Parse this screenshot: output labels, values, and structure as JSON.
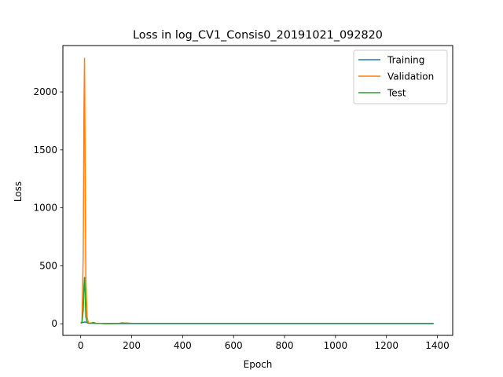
{
  "chart_data": {
    "type": "line",
    "title": "Loss in log_CV1_Consis0_20191021_092820",
    "xlabel": "Epoch",
    "ylabel": "Loss",
    "xlim": [
      -70,
      1460
    ],
    "ylim": [
      -100,
      2400
    ],
    "xticks": [
      0,
      200,
      400,
      600,
      800,
      1000,
      1200,
      1400
    ],
    "yticks": [
      0,
      500,
      1000,
      1500,
      2000
    ],
    "grid": false,
    "legend_position": "top-right",
    "series": [
      {
        "name": "Training",
        "color": "#1f77b4",
        "x": [
          0,
          5,
          10,
          15,
          20,
          25,
          30,
          40,
          50,
          60,
          80,
          100,
          150,
          200,
          300,
          400,
          600,
          800,
          1000,
          1200,
          1385
        ],
        "y": [
          8,
          10,
          12,
          15,
          14,
          10,
          6,
          5,
          4,
          3,
          3,
          2,
          2,
          2,
          2,
          2,
          2,
          2,
          2,
          2,
          2
        ]
      },
      {
        "name": "Validation",
        "color": "#ff7f0e",
        "x": [
          0,
          5,
          10,
          13,
          15,
          17,
          20,
          25,
          30,
          40,
          50,
          60,
          80,
          100,
          150,
          160,
          200,
          300,
          400,
          600,
          800,
          1000,
          1200,
          1385
        ],
        "y": [
          5,
          20,
          600,
          1900,
          2290,
          1500,
          400,
          60,
          8,
          5,
          12,
          4,
          3,
          2,
          3,
          8,
          3,
          3,
          3,
          3,
          3,
          3,
          3,
          3
        ]
      },
      {
        "name": "Test",
        "color": "#2ca02c",
        "x": [
          0,
          5,
          10,
          13,
          15,
          17,
          20,
          25,
          30,
          40,
          50,
          60,
          80,
          100,
          150,
          160,
          200,
          300,
          400,
          600,
          800,
          1000,
          1200,
          1385
        ],
        "y": [
          5,
          10,
          120,
          330,
          400,
          300,
          60,
          10,
          5,
          4,
          10,
          3,
          3,
          2,
          3,
          6,
          3,
          3,
          3,
          3,
          3,
          3,
          3,
          3
        ]
      }
    ]
  }
}
